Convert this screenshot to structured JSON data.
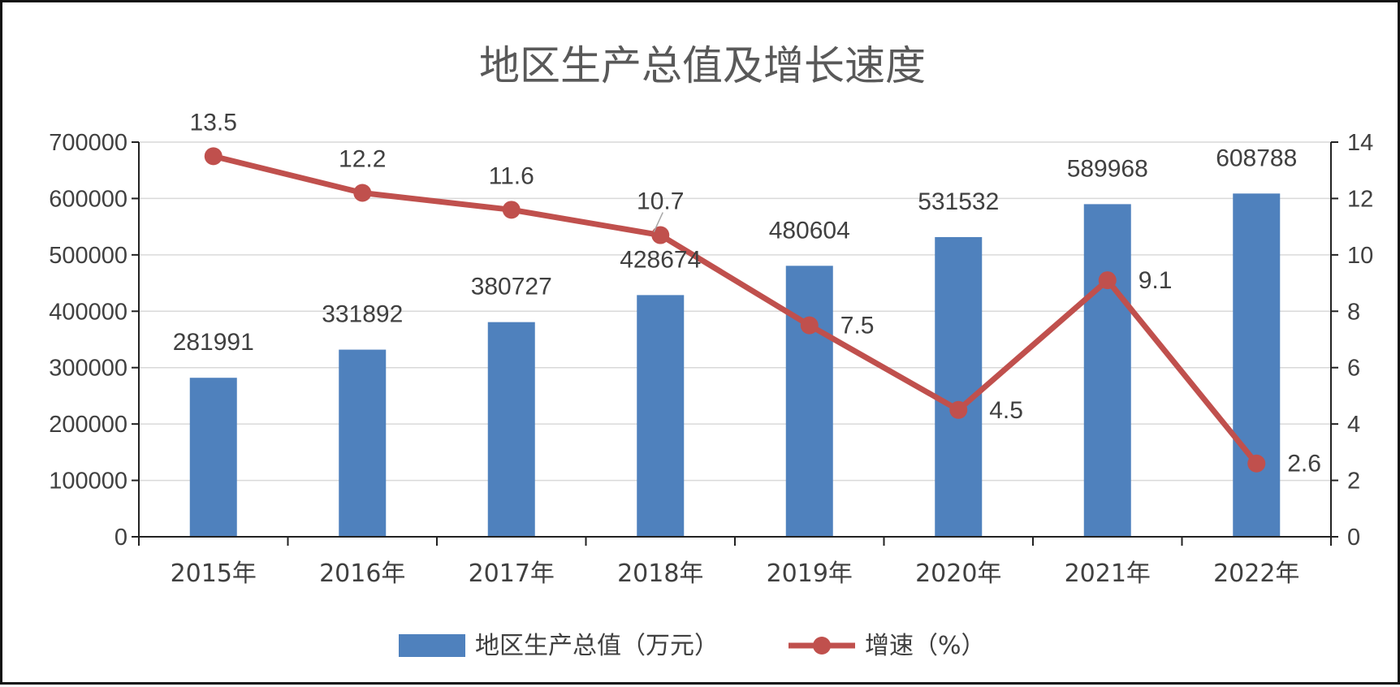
{
  "chart_data": {
    "type": "bar",
    "title": "地区生产总值及增长速度",
    "categories": [
      "2015年",
      "2016年",
      "2017年",
      "2018年",
      "2019年",
      "2020年",
      "2021年",
      "2022年"
    ],
    "series": [
      {
        "name": "地区生产总值（万元）",
        "type": "bar",
        "axis": "left",
        "color": "#4F81BD",
        "values": [
          281991,
          331892,
          380727,
          428674,
          480604,
          531532,
          589968,
          608788
        ]
      },
      {
        "name": "增速（%）",
        "type": "line",
        "axis": "right",
        "color": "#C0504D",
        "values": [
          13.5,
          12.2,
          11.6,
          10.7,
          7.5,
          4.5,
          9.1,
          2.6
        ]
      }
    ],
    "y_left": {
      "min": 0,
      "max": 700000,
      "ticks": [
        "0",
        "100000",
        "200000",
        "300000",
        "400000",
        "500000",
        "600000",
        "700000"
      ]
    },
    "y_right": {
      "min": 0,
      "max": 14,
      "ticks": [
        "0",
        "2",
        "4",
        "6",
        "8",
        "10",
        "12",
        "14"
      ]
    },
    "grid": true,
    "legend_position": "bottom"
  }
}
